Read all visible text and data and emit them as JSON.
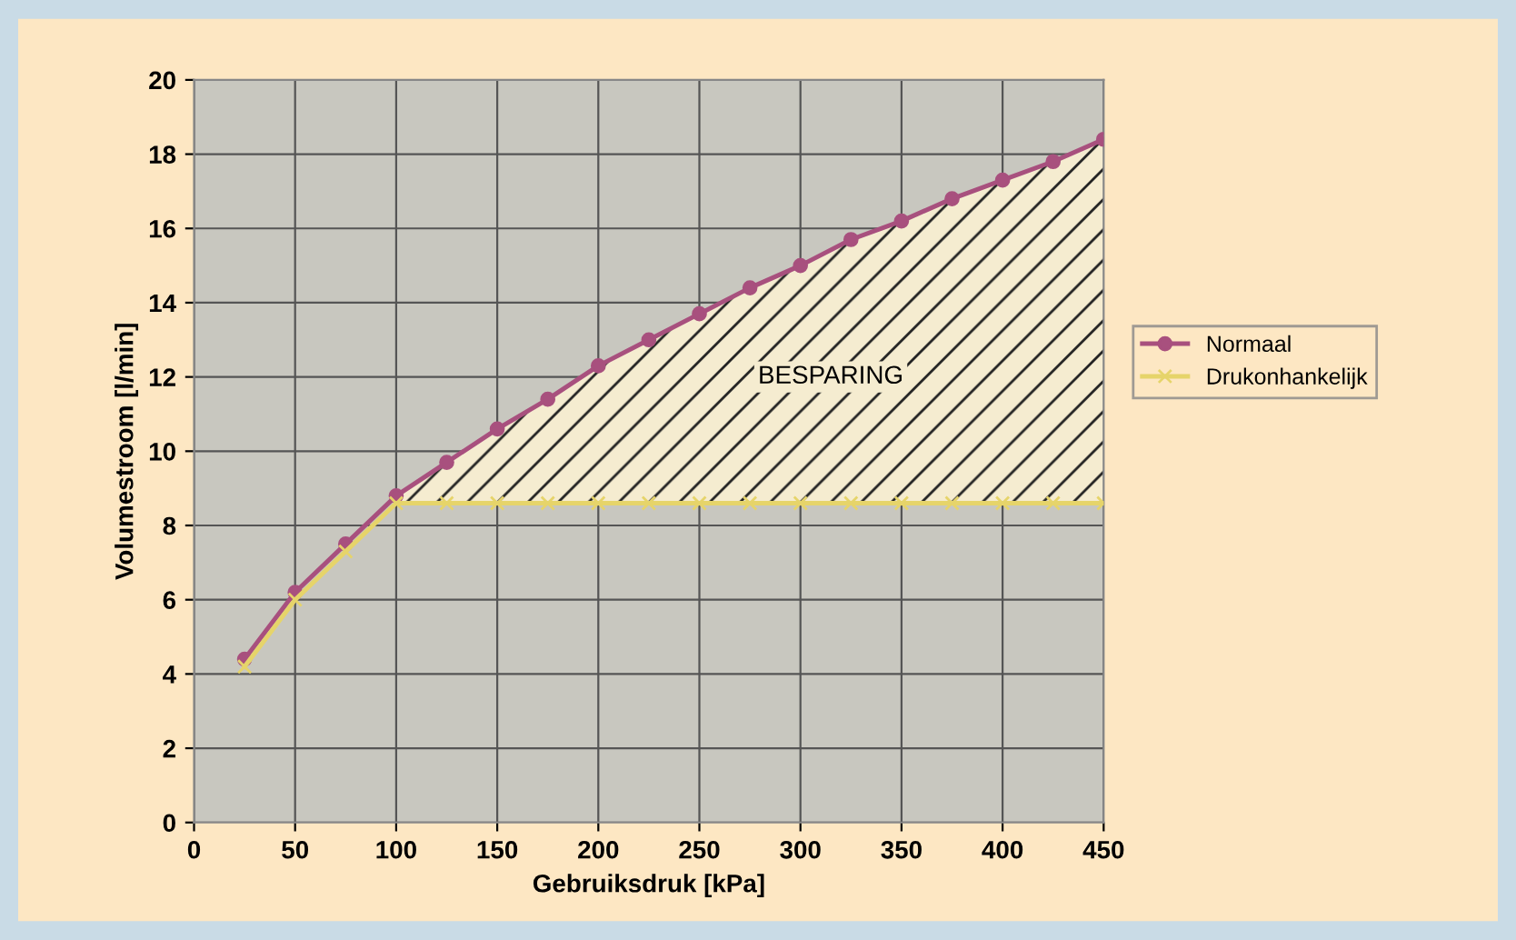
{
  "chart_data": {
    "type": "line",
    "xlabel": "Gebruiksdruk [kPa]",
    "ylabel": "Volumestroom [l/min]",
    "x": [
      25,
      50,
      75,
      100,
      125,
      150,
      175,
      200,
      225,
      250,
      275,
      300,
      325,
      350,
      375,
      400,
      425,
      450
    ],
    "series": [
      {
        "name": "Normaal",
        "color": "#a8507e",
        "marker": "circle",
        "values": [
          4.4,
          6.2,
          7.5,
          8.8,
          9.7,
          10.6,
          11.4,
          12.3,
          13.0,
          13.7,
          14.4,
          15.0,
          15.7,
          16.2,
          16.8,
          17.3,
          17.8,
          18.4
        ],
        "lower": [
          null,
          null,
          null,
          8.6,
          8.6,
          8.6,
          8.6,
          8.6,
          8.6,
          8.6,
          8.6,
          8.6,
          8.6,
          8.6,
          8.6,
          8.6,
          8.6,
          8.6
        ],
        "upper": [
          null,
          null,
          null,
          8.8,
          9.7,
          10.6,
          11.4,
          12.3,
          13.0,
          13.7,
          14.4,
          15.0,
          15.7,
          16.2,
          16.8,
          17.3,
          17.8,
          18.4
        ]
      },
      {
        "name": "Drukonhankelijk",
        "color": "#e6d46a",
        "marker": "cross",
        "values": [
          4.2,
          6.0,
          7.3,
          8.6,
          8.6,
          8.6,
          8.6,
          8.6,
          8.6,
          8.6,
          8.6,
          8.6,
          8.6,
          8.6,
          8.6,
          8.6,
          8.6,
          8.6
        ]
      }
    ],
    "annotations": [
      "BESPARING"
    ],
    "xlim": [
      0,
      450
    ],
    "ylim": [
      0,
      20
    ],
    "xticks": [
      0,
      50,
      100,
      150,
      200,
      250,
      300,
      350,
      400,
      450
    ],
    "yticks": [
      0,
      2,
      4,
      6,
      8,
      10,
      12,
      14,
      16,
      18,
      20
    ],
    "grid": true,
    "legend": "right"
  }
}
